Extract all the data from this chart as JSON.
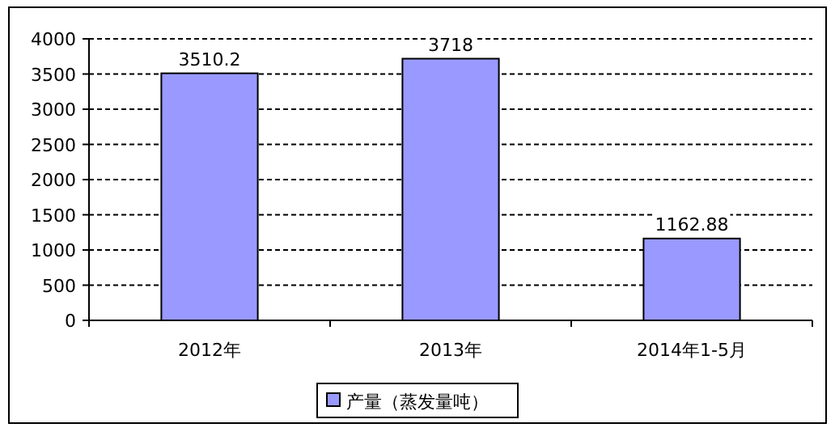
{
  "chart_data": {
    "type": "bar",
    "categories": [
      "2012年",
      "2013年",
      "2014年1-5月"
    ],
    "series": [
      {
        "name": "产量（蒸发量吨）",
        "color": "#9999ff",
        "values": [
          3510.2,
          3718,
          1162.88
        ]
      }
    ],
    "ylim": [
      0,
      4000
    ],
    "yticks": [
      0,
      500,
      1000,
      1500,
      2000,
      2500,
      3000,
      3500,
      4000
    ],
    "grid": "y",
    "legend": "bottom",
    "data_labels": true
  }
}
